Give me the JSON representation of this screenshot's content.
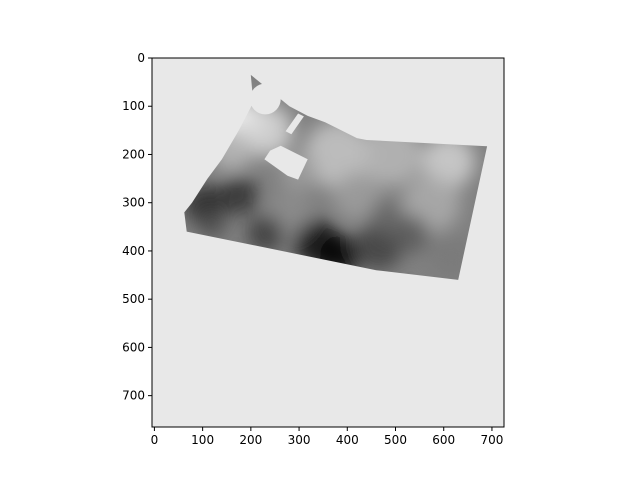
{
  "colors": {
    "figure_background": "#ffffff",
    "axes_background": "#e8e8e8",
    "axis_color": "#000000",
    "colormap": "gray"
  },
  "chart_data": {
    "type": "heatmap",
    "title": "",
    "xlabel": "",
    "ylabel": "",
    "xlim": [
      -5,
      725
    ],
    "ylim": [
      765,
      0
    ],
    "y_axis_inverted": true,
    "grid": false,
    "x_ticks": [
      0,
      100,
      200,
      300,
      400,
      500,
      600,
      700
    ],
    "y_ticks": [
      0,
      100,
      200,
      300,
      400,
      500,
      600,
      700
    ],
    "x_tick_labels": [
      "0",
      "100",
      "200",
      "300",
      "400",
      "500",
      "600",
      "700"
    ],
    "y_tick_labels": [
      "0",
      "100",
      "200",
      "300",
      "400",
      "500",
      "600",
      "700"
    ],
    "outer_boundary": [
      [
        200,
        35
      ],
      [
        280,
        100
      ],
      [
        318,
        120
      ],
      [
        354,
        133
      ],
      [
        420,
        166
      ],
      [
        440,
        170
      ],
      [
        690,
        183
      ],
      [
        630,
        460
      ],
      [
        460,
        440
      ],
      [
        67,
        360
      ],
      [
        62,
        320
      ],
      [
        78,
        300
      ],
      [
        110,
        250
      ],
      [
        140,
        210
      ],
      [
        175,
        150
      ],
      [
        205,
        92
      ]
    ],
    "notch_center": [
      230,
      85
    ],
    "notch_radius": 32,
    "void_strip": [
      [
        298,
        115
      ],
      [
        310,
        121
      ],
      [
        284,
        158
      ],
      [
        272,
        152
      ]
    ],
    "void_rect": [
      [
        240,
        192
      ],
      [
        262,
        182
      ],
      [
        318,
        210
      ],
      [
        298,
        252
      ],
      [
        276,
        244
      ],
      [
        228,
        210
      ]
    ],
    "blobs": [
      {
        "x": 180,
        "y": 130,
        "r": 48,
        "v": 1.0
      },
      {
        "x": 232,
        "y": 150,
        "r": 55,
        "v": 0.85
      },
      {
        "x": 160,
        "y": 190,
        "r": 45,
        "v": 0.72
      },
      {
        "x": 380,
        "y": 200,
        "r": 70,
        "v": 0.78
      },
      {
        "x": 490,
        "y": 200,
        "r": 65,
        "v": 0.72
      },
      {
        "x": 610,
        "y": 215,
        "r": 55,
        "v": 0.82
      },
      {
        "x": 575,
        "y": 300,
        "r": 60,
        "v": 0.68
      },
      {
        "x": 420,
        "y": 285,
        "r": 50,
        "v": 0.62
      },
      {
        "x": 280,
        "y": 320,
        "r": 45,
        "v": 0.55
      },
      {
        "x": 175,
        "y": 285,
        "r": 40,
        "v": 0.18
      },
      {
        "x": 105,
        "y": 305,
        "r": 42,
        "v": 0.15
      },
      {
        "x": 230,
        "y": 365,
        "r": 38,
        "v": 0.22
      },
      {
        "x": 340,
        "y": 385,
        "r": 50,
        "v": 0.05
      },
      {
        "x": 385,
        "y": 410,
        "r": 42,
        "v": 0.02
      },
      {
        "x": 465,
        "y": 390,
        "r": 50,
        "v": 0.25
      },
      {
        "x": 530,
        "y": 365,
        "r": 40,
        "v": 0.35
      },
      {
        "x": 615,
        "y": 410,
        "r": 45,
        "v": 0.48
      },
      {
        "x": 300,
        "y": 235,
        "r": 40,
        "v": 0.62
      },
      {
        "x": 480,
        "y": 330,
        "r": 35,
        "v": 0.4
      },
      {
        "x": 120,
        "y": 345,
        "r": 30,
        "v": 0.3
      }
    ],
    "base_value": 0.5
  }
}
